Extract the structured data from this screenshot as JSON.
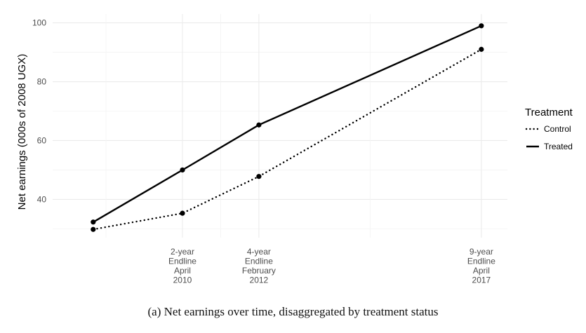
{
  "chart_data": {
    "type": "line",
    "x_ticks": [
      {
        "x": 2010.29,
        "lines": [
          "2-year",
          "Endline",
          "April",
          "2010"
        ]
      },
      {
        "x": 2012.08,
        "lines": [
          "4-year",
          "Endline",
          "February",
          "2012"
        ]
      },
      {
        "x": 2017.29,
        "lines": [
          "9-year",
          "Endline",
          "April",
          "2017"
        ]
      }
    ],
    "xlim": [
      2007.25,
      2017.9
    ],
    "ylim": [
      27,
      103
    ],
    "y_ticks": [
      40,
      60,
      80,
      100
    ],
    "ylabel": "Net earnings (000s of 2008 UGX)",
    "series": [
      {
        "name": "Control",
        "style": "dotted",
        "x": [
          2008.2,
          2010.29,
          2012.08,
          2017.29
        ],
        "values": [
          29.8,
          35.3,
          47.8,
          91.0
        ]
      },
      {
        "name": "Treated",
        "style": "solid",
        "x": [
          2008.2,
          2010.29,
          2012.08,
          2017.29
        ],
        "values": [
          32.3,
          50.0,
          65.3,
          99.0
        ]
      }
    ],
    "legend": {
      "title": "Treatment",
      "position": "right"
    },
    "grid": true,
    "line_color": "#000000",
    "grid_color": "#ebebeb"
  },
  "caption": "(a) Net earnings over time, disaggregated by treatment status"
}
